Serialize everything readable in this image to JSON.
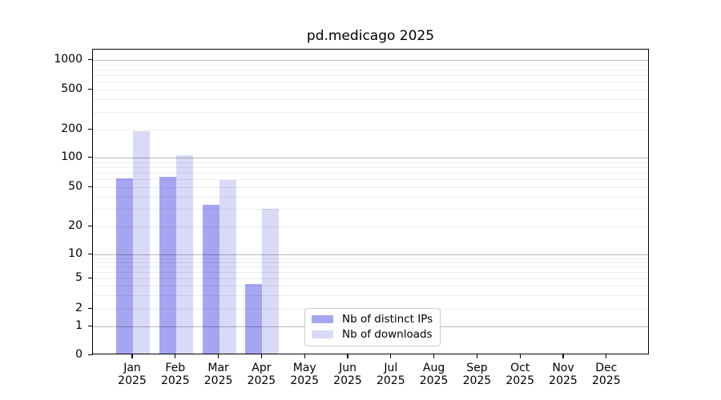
{
  "title": "pd.medicago 2025",
  "chart_data": {
    "type": "bar",
    "title": "pd.medicago 2025",
    "categories": [
      "Jan 2025",
      "Feb 2025",
      "Mar 2025",
      "Apr 2025",
      "May 2025",
      "Jun 2025",
      "Jul 2025",
      "Aug 2025",
      "Sep 2025",
      "Oct 2025",
      "Nov 2025",
      "Dec 2025"
    ],
    "series": [
      {
        "name": "Nb of distinct IPs",
        "color": "#a5a5f2",
        "values": [
          59,
          61,
          32,
          4,
          0,
          0,
          0,
          0,
          0,
          0,
          0,
          0
        ]
      },
      {
        "name": "Nb of downloads",
        "color": "#d9d9f8",
        "values": [
          185,
          102,
          57,
          29,
          0,
          0,
          0,
          0,
          0,
          0,
          0,
          0
        ]
      }
    ],
    "xlabel": "",
    "ylabel": "",
    "yticks": [
      0,
      1,
      2,
      5,
      10,
      20,
      50,
      100,
      200,
      500,
      1000
    ],
    "yscale": "symlog",
    "ylim": [
      0,
      1150
    ],
    "grid": true,
    "grid_major_at": [
      1,
      10,
      100,
      1000
    ],
    "legend_position": "lower center",
    "legend_labels": [
      "Nb of distinct IPs",
      "Nb of downloads"
    ]
  }
}
